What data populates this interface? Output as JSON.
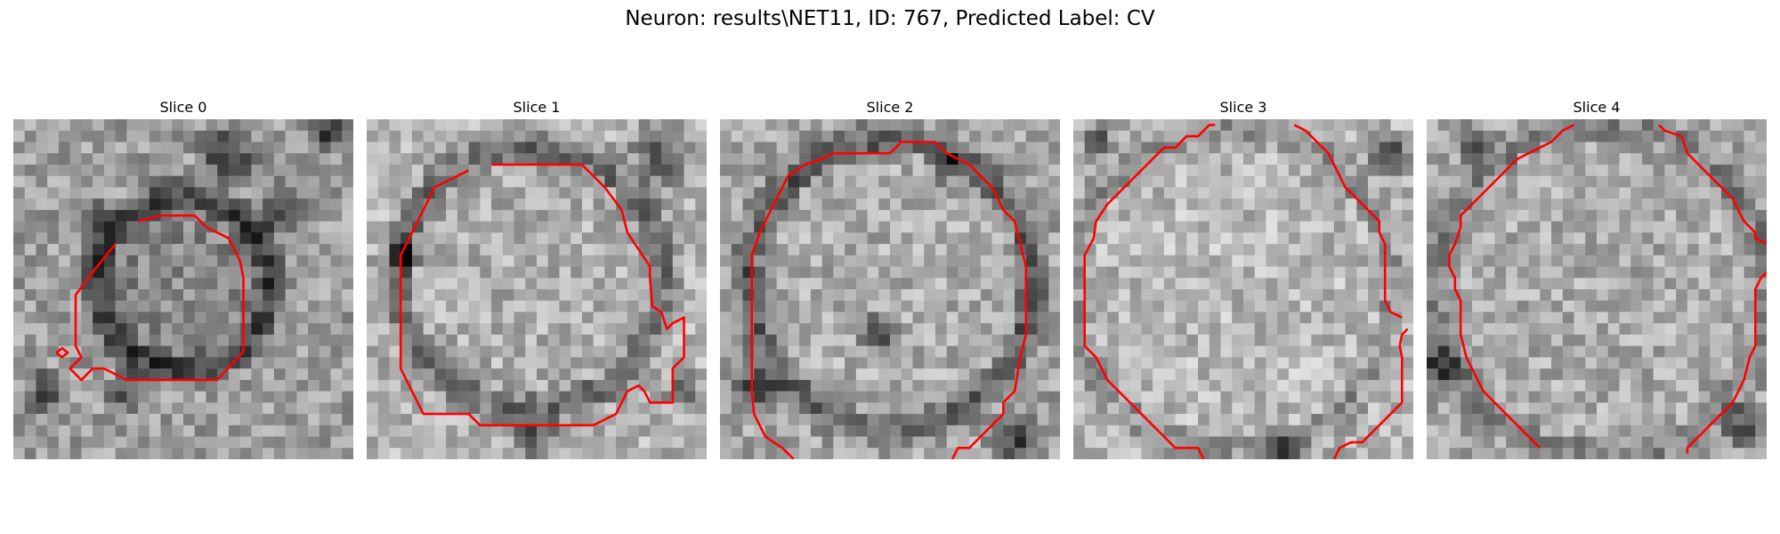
{
  "figure": {
    "title": "Neuron: results\\NET11, ID: 767, Predicted Label: CV"
  },
  "slices": [
    {
      "label": "Slice 0"
    },
    {
      "label": "Slice 1"
    },
    {
      "label": "Slice 2"
    },
    {
      "label": "Slice 3"
    },
    {
      "label": "Slice 4"
    }
  ],
  "colors": {
    "contour": "#ff0000",
    "background": "#ffffff"
  }
}
